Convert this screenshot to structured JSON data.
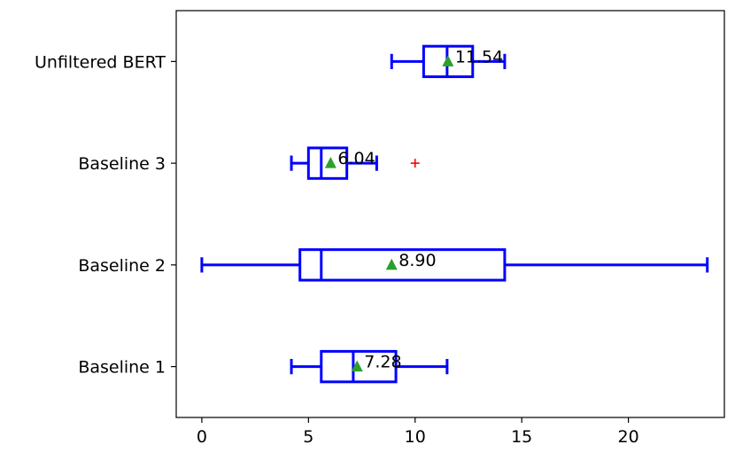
{
  "chart_data": {
    "type": "boxplot",
    "orientation": "horizontal",
    "title": "",
    "xlabel": "",
    "ylabel": "",
    "xlim": [
      -1.2,
      24.5
    ],
    "x_ticks": [
      {
        "value": 0,
        "label": "0"
      },
      {
        "value": 5,
        "label": "5"
      },
      {
        "value": 10,
        "label": "10"
      },
      {
        "value": 15,
        "label": "15"
      },
      {
        "value": 20,
        "label": "20"
      }
    ],
    "categories": [
      "Baseline 1",
      "Baseline 2",
      "Baseline 3",
      "Unfiltered BERT"
    ],
    "series": [
      {
        "category": "Baseline 1",
        "whisker_low": 4.2,
        "q1": 5.6,
        "median": 7.1,
        "q3": 9.1,
        "whisker_high": 11.5,
        "mean": 7.28,
        "mean_label": "7.28",
        "outliers": []
      },
      {
        "category": "Baseline 2",
        "whisker_low": 0.0,
        "q1": 4.6,
        "median": 5.6,
        "q3": 14.2,
        "whisker_high": 23.7,
        "mean": 8.9,
        "mean_label": "8.90",
        "outliers": []
      },
      {
        "category": "Baseline 3",
        "whisker_low": 4.2,
        "q1": 5.0,
        "median": 5.6,
        "q3": 6.8,
        "whisker_high": 8.2,
        "mean": 6.04,
        "mean_label": "6.04",
        "outliers": [
          10.0
        ]
      },
      {
        "category": "Unfiltered BERT",
        "whisker_low": 8.9,
        "q1": 10.4,
        "median": 11.5,
        "q3": 12.7,
        "whisker_high": 14.2,
        "mean": 11.54,
        "mean_label": "11.54",
        "outliers": []
      }
    ],
    "grid": false,
    "legend": "none",
    "colors": {
      "box": "#0000ff",
      "mean_marker": "#2ca02c",
      "outlier": "#ff0000",
      "axis": "#000000"
    }
  }
}
